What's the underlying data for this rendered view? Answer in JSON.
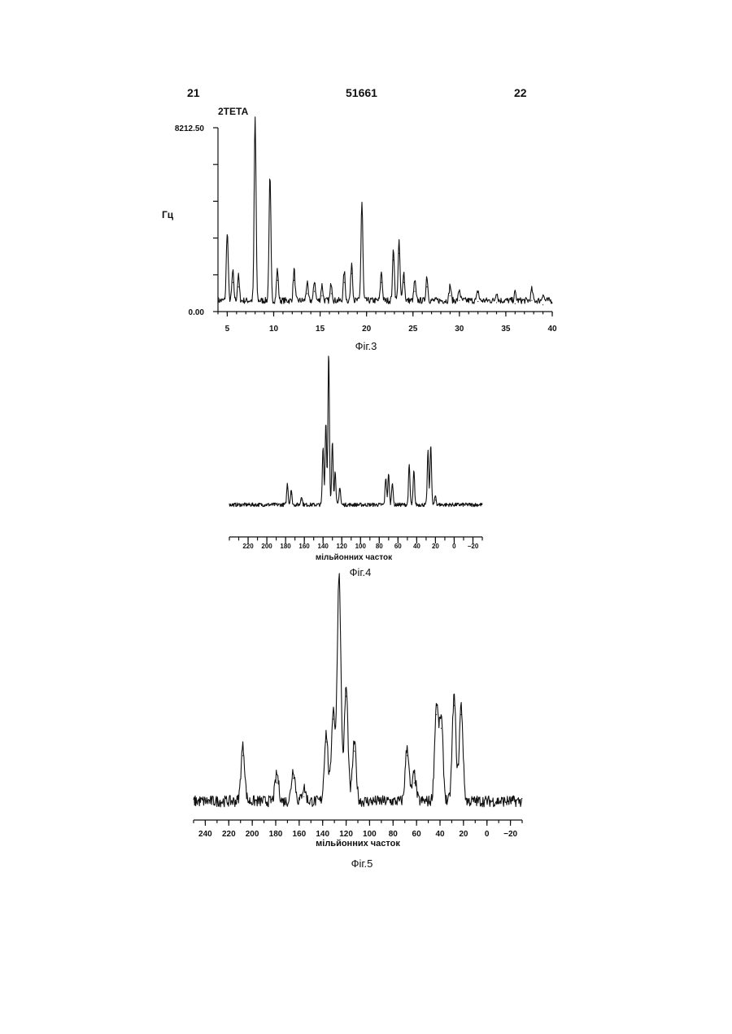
{
  "header": {
    "left_page": "21",
    "patent_number": "51661",
    "right_page": "22"
  },
  "chart_data": [
    {
      "type": "line",
      "title": "",
      "figure_label": "Фіг.3",
      "xlabel": "2ТЕТА",
      "ylabel": "Гц",
      "xlim": [
        4,
        40
      ],
      "ylim": [
        0,
        8212.5
      ],
      "y_tick_labels": [
        "8212.50",
        "0.00"
      ],
      "x_ticks": [
        5,
        10,
        15,
        20,
        25,
        30,
        35,
        40
      ],
      "x_tick_labels": [
        "5",
        "10",
        "15",
        "20",
        "25",
        "30",
        "35",
        "40"
      ],
      "peaks": [
        {
          "x": 5.0,
          "y": 3100
        },
        {
          "x": 5.6,
          "y": 1300
        },
        {
          "x": 6.2,
          "y": 1100
        },
        {
          "x": 8.0,
          "y": 8212.5
        },
        {
          "x": 9.6,
          "y": 5500
        },
        {
          "x": 10.4,
          "y": 1400
        },
        {
          "x": 12.2,
          "y": 1400
        },
        {
          "x": 13.6,
          "y": 800
        },
        {
          "x": 14.4,
          "y": 900
        },
        {
          "x": 15.2,
          "y": 700
        },
        {
          "x": 16.2,
          "y": 800
        },
        {
          "x": 17.6,
          "y": 1300
        },
        {
          "x": 18.4,
          "y": 1700
        },
        {
          "x": 19.5,
          "y": 4400
        },
        {
          "x": 21.6,
          "y": 1300
        },
        {
          "x": 22.9,
          "y": 2300
        },
        {
          "x": 23.5,
          "y": 2600
        },
        {
          "x": 24.0,
          "y": 1300
        },
        {
          "x": 25.2,
          "y": 900
        },
        {
          "x": 26.5,
          "y": 1100
        },
        {
          "x": 29.0,
          "y": 700
        },
        {
          "x": 30.0,
          "y": 500
        },
        {
          "x": 32.0,
          "y": 450
        },
        {
          "x": 34.0,
          "y": 400
        },
        {
          "x": 36.0,
          "y": 350
        },
        {
          "x": 37.8,
          "y": 500
        },
        {
          "x": 39.0,
          "y": 300
        }
      ]
    },
    {
      "type": "line",
      "title": "",
      "figure_label": "Фіг.4",
      "xlabel": "мільйонних часток",
      "xlim": [
        240,
        -30
      ],
      "x_ticks": [
        220,
        200,
        180,
        160,
        140,
        120,
        100,
        80,
        60,
        40,
        20,
        0,
        -20
      ],
      "x_tick_labels": [
        "220",
        "200",
        "180",
        "160",
        "140",
        "120",
        "100",
        "80",
        "60",
        "40",
        "20",
        "0",
        "−20"
      ],
      "peaks": [
        {
          "x": 178,
          "y": 0.14
        },
        {
          "x": 174,
          "y": 0.1
        },
        {
          "x": 163,
          "y": 0.06
        },
        {
          "x": 140,
          "y": 0.38
        },
        {
          "x": 137,
          "y": 0.55
        },
        {
          "x": 134,
          "y": 1.0
        },
        {
          "x": 130,
          "y": 0.42
        },
        {
          "x": 127,
          "y": 0.22
        },
        {
          "x": 122,
          "y": 0.12
        },
        {
          "x": 73,
          "y": 0.18
        },
        {
          "x": 70,
          "y": 0.2
        },
        {
          "x": 66,
          "y": 0.15
        },
        {
          "x": 48,
          "y": 0.26
        },
        {
          "x": 43,
          "y": 0.22
        },
        {
          "x": 28,
          "y": 0.35
        },
        {
          "x": 25,
          "y": 0.4
        },
        {
          "x": 20,
          "y": 0.06
        }
      ]
    },
    {
      "type": "line",
      "title": "",
      "figure_label": "Фіг.5",
      "xlabel": "мільйонних часток",
      "xlim": [
        250,
        -30
      ],
      "x_ticks": [
        240,
        220,
        200,
        180,
        160,
        140,
        120,
        100,
        80,
        60,
        40,
        20,
        0,
        -20
      ],
      "x_tick_labels": [
        "240",
        "220",
        "200",
        "180",
        "160",
        "140",
        "120",
        "100",
        "80",
        "60",
        "40",
        "20",
        "0",
        "−20"
      ],
      "peaks": [
        {
          "x": 208,
          "y": 0.24
        },
        {
          "x": 179,
          "y": 0.12
        },
        {
          "x": 165,
          "y": 0.14
        },
        {
          "x": 156,
          "y": 0.06
        },
        {
          "x": 137,
          "y": 0.3
        },
        {
          "x": 131,
          "y": 0.4
        },
        {
          "x": 126,
          "y": 1.0
        },
        {
          "x": 120,
          "y": 0.5
        },
        {
          "x": 113,
          "y": 0.26
        },
        {
          "x": 68,
          "y": 0.24
        },
        {
          "x": 62,
          "y": 0.12
        },
        {
          "x": 43,
          "y": 0.42
        },
        {
          "x": 39,
          "y": 0.36
        },
        {
          "x": 28,
          "y": 0.46
        },
        {
          "x": 22,
          "y": 0.42
        }
      ]
    }
  ]
}
